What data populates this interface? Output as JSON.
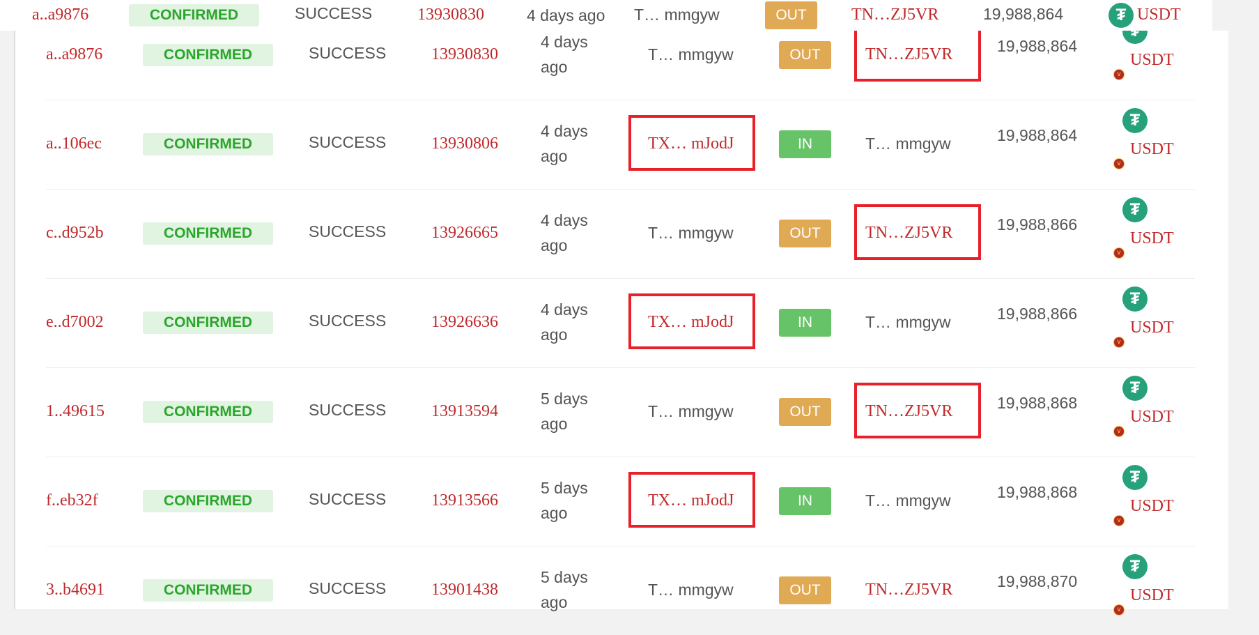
{
  "colors": {
    "link_red": "#c0282a",
    "confirmed": "#2aa62a",
    "out": "#e0aa55",
    "in": "#67c367",
    "highlight_box": "#e8202a",
    "token": "#26a17b"
  },
  "top_row": {
    "hash": "a..a9876",
    "status": "CONFIRMED",
    "result": "SUCCESS",
    "block": "13930830",
    "age": [
      "4 days",
      "ago"
    ],
    "from": "T… mmgyw",
    "direction": "OUT",
    "to": "TN…ZJ5VR",
    "amount": "19,988,864",
    "token": "USDT",
    "token_icon": "tether-icon"
  },
  "rows": [
    {
      "hash": "a..a9876",
      "status": "CONFIRMED",
      "result": "SUCCESS",
      "block": "13930830",
      "age": [
        "4 days",
        "ago"
      ],
      "from": "T… mmgyw",
      "direction": "OUT",
      "to": "TN…ZJ5VR",
      "amount": "19,988,864",
      "token": "USDT",
      "highlighted": "to"
    },
    {
      "hash": "a..106ec",
      "status": "CONFIRMED",
      "result": "SUCCESS",
      "block": "13930806",
      "age": [
        "4 days",
        "ago"
      ],
      "from": "TX… mJodJ",
      "direction": "IN",
      "to": "T… mmgyw",
      "amount": "19,988,864",
      "token": "USDT",
      "highlighted": "from"
    },
    {
      "hash": "c..d952b",
      "status": "CONFIRMED",
      "result": "SUCCESS",
      "block": "13926665",
      "age": [
        "4 days",
        "ago"
      ],
      "from": "T… mmgyw",
      "direction": "OUT",
      "to": "TN…ZJ5VR",
      "amount": "19,988,866",
      "token": "USDT",
      "highlighted": "to"
    },
    {
      "hash": "e..d7002",
      "status": "CONFIRMED",
      "result": "SUCCESS",
      "block": "13926636",
      "age": [
        "4 days",
        "ago"
      ],
      "from": "TX… mJodJ",
      "direction": "IN",
      "to": "T… mmgyw",
      "amount": "19,988,866",
      "token": "USDT",
      "highlighted": "from"
    },
    {
      "hash": "1..49615",
      "status": "CONFIRMED",
      "result": "SUCCESS",
      "block": "13913594",
      "age": [
        "5 days",
        "ago"
      ],
      "from": "T… mmgyw",
      "direction": "OUT",
      "to": "TN…ZJ5VR",
      "amount": "19,988,868",
      "token": "USDT",
      "highlighted": "to"
    },
    {
      "hash": "f..eb32f",
      "status": "CONFIRMED",
      "result": "SUCCESS",
      "block": "13913566",
      "age": [
        "5 days",
        "ago"
      ],
      "from": "TX… mJodJ",
      "direction": "IN",
      "to": "T… mmgyw",
      "amount": "19,988,868",
      "token": "USDT",
      "highlighted": "from"
    },
    {
      "hash": "3..b4691",
      "status": "CONFIRMED",
      "result": "SUCCESS",
      "block": "13901438",
      "age": [
        "5 days",
        "ago"
      ],
      "from": "T… mmgyw",
      "direction": "OUT",
      "to": "TN…ZJ5VR",
      "amount": "19,988,870",
      "token": "USDT",
      "highlighted": ""
    }
  ]
}
